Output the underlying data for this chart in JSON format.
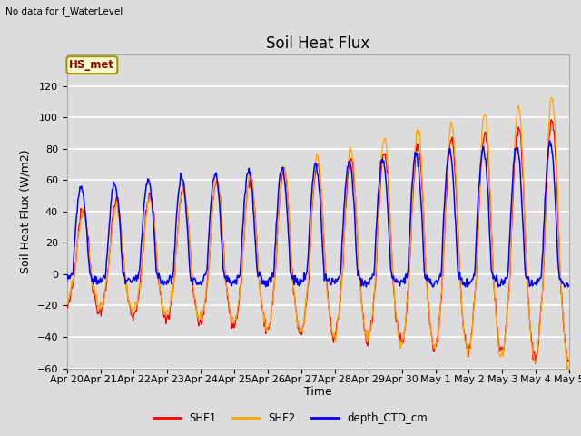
{
  "title": "Soil Heat Flux",
  "top_left_text": "No data for f_WaterLevel",
  "station_label": "HS_met",
  "ylabel": "Soil Heat Flux (W/m2)",
  "xlabel": "Time",
  "ylim": [
    -60,
    140
  ],
  "yticks": [
    -60,
    -40,
    -20,
    0,
    20,
    40,
    60,
    80,
    100,
    120
  ],
  "x_tick_labels": [
    "Apr 20",
    "Apr 21",
    "Apr 22",
    "Apr 23",
    "Apr 24",
    "Apr 25",
    "Apr 26",
    "Apr 27",
    "Apr 28",
    "Apr 29",
    "Apr 30",
    "May 1",
    "May 2",
    "May 3",
    "May 4",
    "May 5"
  ],
  "legend_labels": [
    "SHF1",
    "SHF2",
    "depth_CTD_cm"
  ],
  "colors": {
    "SHF1": "#ff0000",
    "SHF2": "#ffa500",
    "depth_CTD_cm": "#0000ff"
  },
  "plot_bg_color": "#dcdcdc",
  "grid_color": "#ffffff",
  "fig_bg_color": "#dcdcdc",
  "title_fontsize": 12,
  "axis_label_fontsize": 9,
  "tick_fontsize": 8
}
